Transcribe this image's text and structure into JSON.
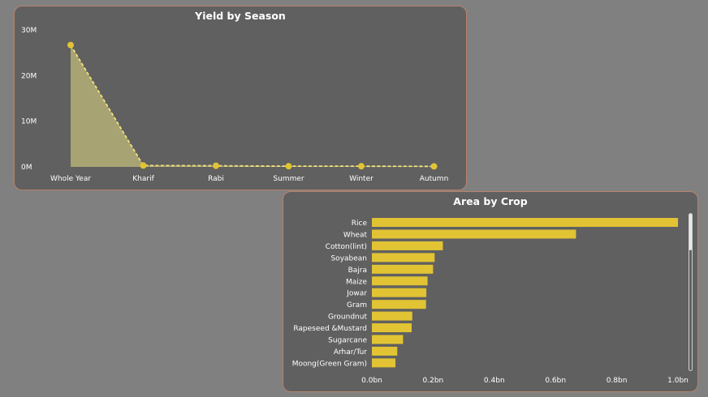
{
  "colors": {
    "background": "#808080",
    "card_bg": "#606060",
    "card_border": "#b8826a",
    "accent": "#e1c334",
    "area_fill": "#a8a372"
  },
  "chart_data": [
    {
      "type": "area",
      "title": "Yield by Season",
      "categories": [
        "Whole Year",
        "Kharif",
        "Rabi",
        "Summer",
        "Winter",
        "Autumn"
      ],
      "values": [
        26700000,
        300000,
        250000,
        150000,
        150000,
        120000
      ],
      "y_ticks": [
        "0M",
        "10M",
        "20M",
        "30M"
      ],
      "y_tick_values": [
        0,
        10000000,
        20000000,
        30000000
      ],
      "ylim": [
        0,
        30000000
      ],
      "xlabel": "",
      "ylabel": "",
      "grid": false,
      "line_style": "dashed"
    },
    {
      "type": "bar",
      "orientation": "horizontal",
      "title": "Area by Crop",
      "categories": [
        "Rice",
        "Wheat",
        "Cotton(lint)",
        "Soyabean",
        "Bajra",
        "Maize",
        "Jowar",
        "Gram",
        "Groundnut",
        "Rapeseed &Mustard",
        "Sugarcane",
        "Arhar/Tur",
        "Moong(Green Gram)"
      ],
      "values": [
        1.0,
        0.667,
        0.232,
        0.205,
        0.2,
        0.182,
        0.178,
        0.177,
        0.132,
        0.13,
        0.102,
        0.083,
        0.077
      ],
      "x_ticks": [
        "0.0bn",
        "0.2bn",
        "0.4bn",
        "0.6bn",
        "0.8bn",
        "1.0bn"
      ],
      "x_tick_values": [
        0,
        0.2,
        0.4,
        0.6,
        0.8,
        1.0
      ],
      "xlim": [
        0,
        1.0
      ],
      "xlabel": "",
      "ylabel": "",
      "grid": false
    }
  ]
}
